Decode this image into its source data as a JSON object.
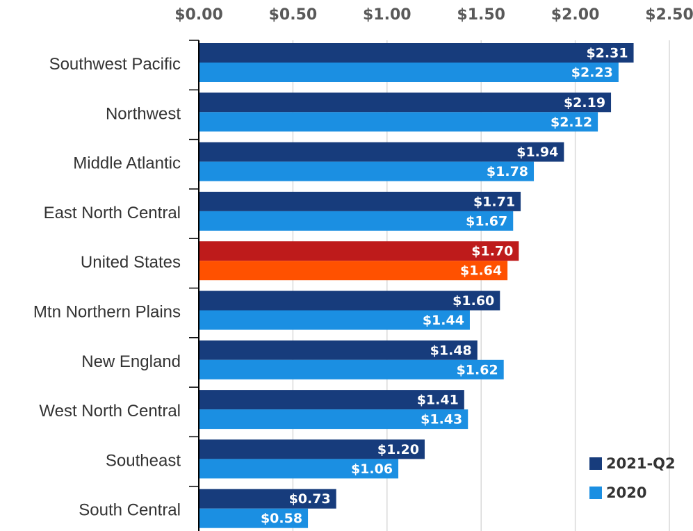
{
  "chart_data": {
    "type": "hbar",
    "categories": [
      "Southwest Pacific",
      "Northwest",
      "Middle Atlantic",
      "East North Central",
      "United States",
      "Mtn Northern Plains",
      "New England",
      "West North Central",
      "Southeast",
      "South Central"
    ],
    "series": [
      {
        "name": "2021-Q2",
        "color": "#173c7c",
        "colors": [
          "#173c7c",
          "#173c7c",
          "#173c7c",
          "#173c7c",
          "#be1b1b",
          "#173c7c",
          "#173c7c",
          "#173c7c",
          "#173c7c",
          "#173c7c"
        ],
        "values": [
          2.31,
          2.19,
          1.94,
          1.71,
          1.7,
          1.6,
          1.48,
          1.41,
          1.2,
          0.73
        ],
        "value_labels": [
          "$2.31",
          "$2.19",
          "$1.94",
          "$1.71",
          "$1.70",
          "$1.60",
          "$1.48",
          "$1.41",
          "$1.20",
          "$0.73"
        ]
      },
      {
        "name": "2020",
        "color": "#1b8fe2",
        "colors": [
          "#1b8fe2",
          "#1b8fe2",
          "#1b8fe2",
          "#1b8fe2",
          "#ff5100",
          "#1b8fe2",
          "#1b8fe2",
          "#1b8fe2",
          "#1b8fe2",
          "#1b8fe2"
        ],
        "values": [
          2.23,
          2.12,
          1.78,
          1.67,
          1.64,
          1.44,
          1.62,
          1.43,
          1.06,
          0.58
        ],
        "value_labels": [
          "$2.23",
          "$2.12",
          "$1.78",
          "$1.67",
          "$1.64",
          "$1.44",
          "$1.62",
          "$1.43",
          "$1.06",
          "$0.58"
        ]
      }
    ],
    "xlim": [
      0,
      2.5
    ],
    "xticks": [
      {
        "value": 0,
        "label": "$0.00"
      },
      {
        "value": 0.5,
        "label": "$0.50"
      },
      {
        "value": 1,
        "label": "$1.00"
      },
      {
        "value": 1.5,
        "label": "$1.50"
      },
      {
        "value": 2,
        "label": "$2.00"
      },
      {
        "value": 2.5,
        "label": "$2.50"
      }
    ],
    "grid": true,
    "legend": "bottom-right"
  }
}
